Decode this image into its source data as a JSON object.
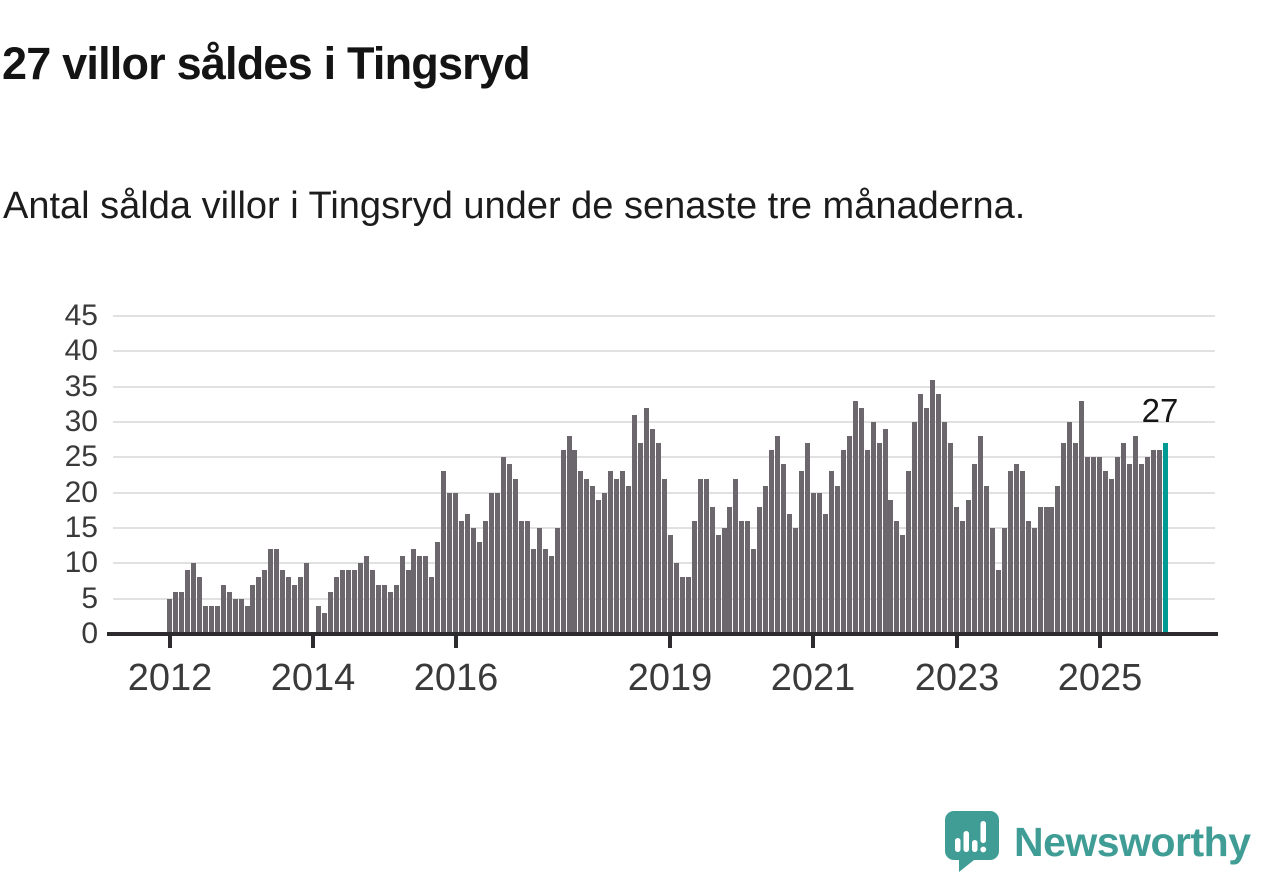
{
  "header": {
    "title": "27 villor såldes i Tingsryd",
    "subtitle": "Antal sålda villor i Tingsryd under de senaste tre månaderna."
  },
  "chart_data": {
    "type": "bar",
    "title": "27 villor såldes i Tingsryd",
    "xlabel": "",
    "ylabel": "",
    "ylim": [
      0,
      45
    ],
    "grid": true,
    "legend": false,
    "y_ticks": [
      0,
      5,
      10,
      15,
      20,
      25,
      30,
      35,
      40,
      45
    ],
    "x_tick_years": [
      "2012",
      "2014",
      "2016",
      "2019",
      "2021",
      "2023",
      "2025"
    ],
    "series_start": "2012-01",
    "series_end": "2025-12",
    "values": [
      5,
      6,
      6,
      9,
      10,
      8,
      4,
      4,
      4,
      7,
      6,
      5,
      5,
      4,
      7,
      8,
      9,
      12,
      12,
      9,
      8,
      7,
      8,
      10,
      0,
      4,
      3,
      6,
      8,
      9,
      9,
      9,
      10,
      11,
      9,
      7,
      7,
      6,
      7,
      11,
      9,
      12,
      11,
      11,
      8,
      13,
      23,
      20,
      20,
      16,
      17,
      15,
      13,
      16,
      20,
      20,
      25,
      24,
      22,
      16,
      16,
      12,
      15,
      12,
      11,
      15,
      26,
      28,
      26,
      23,
      22,
      21,
      19,
      20,
      23,
      22,
      23,
      21,
      31,
      27,
      32,
      29,
      27,
      22,
      14,
      10,
      8,
      8,
      16,
      22,
      22,
      18,
      14,
      15,
      18,
      22,
      16,
      16,
      12,
      18,
      21,
      26,
      28,
      24,
      17,
      15,
      23,
      27,
      20,
      20,
      17,
      23,
      21,
      26,
      28,
      33,
      32,
      26,
      30,
      27,
      29,
      19,
      16,
      14,
      23,
      30,
      34,
      32,
      36,
      34,
      30,
      27,
      18,
      16,
      19,
      24,
      28,
      21,
      15,
      9,
      15,
      23,
      24,
      23,
      16,
      15,
      18,
      18,
      18,
      21,
      27,
      30,
      27,
      33,
      25,
      25,
      25,
      23,
      22,
      25,
      27,
      24,
      28,
      24,
      25,
      26,
      26,
      27
    ],
    "bar_color": "#6b676d",
    "highlight_color": "#009a94",
    "highlight_value": 27,
    "annotation": "27",
    "axis_color": "#2d2b2e",
    "gridline_color": "#e1e1e1"
  },
  "branding": {
    "logo_text": "Newsworthy",
    "logo_color": "#3f9d96"
  }
}
